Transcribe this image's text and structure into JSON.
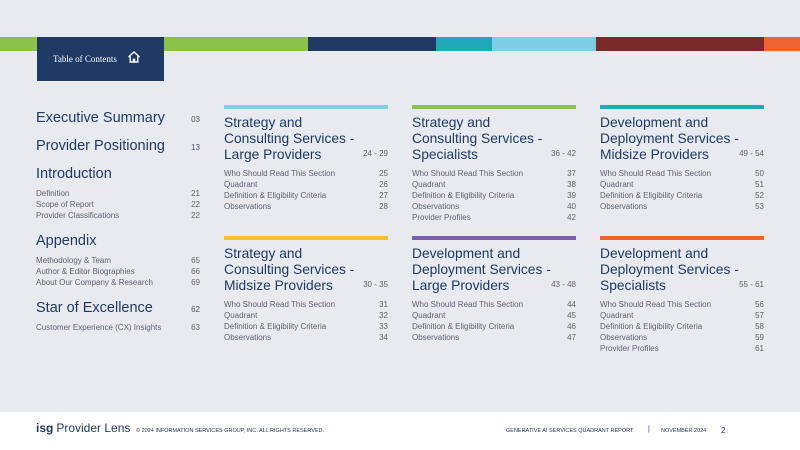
{
  "colors": {
    "navy": "#1f3a64",
    "green": "#8bc34a",
    "teal": "#1ea8b8",
    "light_blue": "#7ecfe6",
    "maroon": "#7b2a2a",
    "orange": "#f0622e",
    "yellow": "#f4c12a",
    "purple": "#7a5db0"
  },
  "header": {
    "tab_label": "Table of Contents",
    "tab_icon": "home-icon"
  },
  "left": {
    "executive": {
      "title": "Executive Summary",
      "page": "03"
    },
    "positioning": {
      "title": "Provider Positioning",
      "page": "13"
    },
    "introduction": {
      "title": "Introduction",
      "items": [
        {
          "label": "Definition",
          "page": "21"
        },
        {
          "label": "Scope of Report",
          "page": "22"
        },
        {
          "label": "Provider Classifications",
          "page": "22"
        }
      ]
    },
    "appendix": {
      "title": "Appendix",
      "items": [
        {
          "label": "Methodology & Team",
          "page": "65"
        },
        {
          "label": "Author & Editor Biographies",
          "page": "66"
        },
        {
          "label": "About Our Company & Research",
          "page": "69"
        }
      ]
    },
    "star": {
      "title": "Star of Excellence",
      "page": "62",
      "items": [
        {
          "label": "Customer Experience (CX) Insights",
          "page": "63"
        }
      ]
    }
  },
  "cards": [
    {
      "line1": "Strategy and",
      "line2": "Consulting Services -",
      "line3": "Large Providers",
      "range": "24 - 29",
      "items": [
        {
          "label": "Who Should Read This Section",
          "page": "25"
        },
        {
          "label": "Quadrant",
          "page": "26"
        },
        {
          "label": "Definition & Eligibility Criteria",
          "page": "27"
        },
        {
          "label": "Observations",
          "page": "28"
        }
      ]
    },
    {
      "line1": "Strategy and",
      "line2": "Consulting Services -",
      "line3": "Specialists",
      "range": "36 - 42",
      "items": [
        {
          "label": "Who Should Read This Section",
          "page": "37"
        },
        {
          "label": "Quadrant",
          "page": "38"
        },
        {
          "label": "Definition & Eligibility Criteria",
          "page": "39"
        },
        {
          "label": "Observations",
          "page": "40"
        },
        {
          "label": "Provider Profiles",
          "page": "42"
        }
      ]
    },
    {
      "line1": "Development and",
      "line2": "Deployment Services -",
      "line3": "Midsize Providers",
      "range": "49 - 54",
      "items": [
        {
          "label": "Who Should Read This Section",
          "page": "50"
        },
        {
          "label": "Quadrant",
          "page": "51"
        },
        {
          "label": "Definition & Eligibility Criteria",
          "page": "52"
        },
        {
          "label": "Observations",
          "page": "53"
        }
      ]
    },
    {
      "line1": "Strategy and",
      "line2": "Consulting Services -",
      "line3": "Midsize Providers",
      "range": "30 - 35",
      "items": [
        {
          "label": "Who Should Read This Section",
          "page": "31"
        },
        {
          "label": "Quadrant",
          "page": "32"
        },
        {
          "label": "Definition & Eligibility Criteria",
          "page": "33"
        },
        {
          "label": "Observations",
          "page": "34"
        }
      ]
    },
    {
      "line1": "Development and",
      "line2": "Deployment Services -",
      "line3": "Large Providers",
      "range": "43 - 48",
      "items": [
        {
          "label": "Who Should Read This Section",
          "page": "44"
        },
        {
          "label": "Quadrant",
          "page": "45"
        },
        {
          "label": "Definition & Eligibility Criteria",
          "page": "46"
        },
        {
          "label": "Observations",
          "page": "47"
        }
      ]
    },
    {
      "line1": "Development and",
      "line2": "Deployment Services -",
      "line3": "Specialists",
      "range": "55 - 61",
      "items": [
        {
          "label": "Who Should Read This Section",
          "page": "56"
        },
        {
          "label": "Quadrant",
          "page": "57"
        },
        {
          "label": "Definition & Eligibility Criteria",
          "page": "58"
        },
        {
          "label": "Observations",
          "page": "59"
        },
        {
          "label": "Provider Profiles",
          "page": "61"
        }
      ]
    }
  ],
  "footer": {
    "logo_isg": "isg",
    "logo_text": "Provider Lens",
    "copyright": "© 2024 INFORMATION SERVICES GROUP, INC. ALL RIGHTS RESERVED.",
    "report": "GENERATIVE AI SERVICES QUADRANT REPORT",
    "separator": "|",
    "date": "NOVEMBER 2024",
    "page": "2"
  }
}
